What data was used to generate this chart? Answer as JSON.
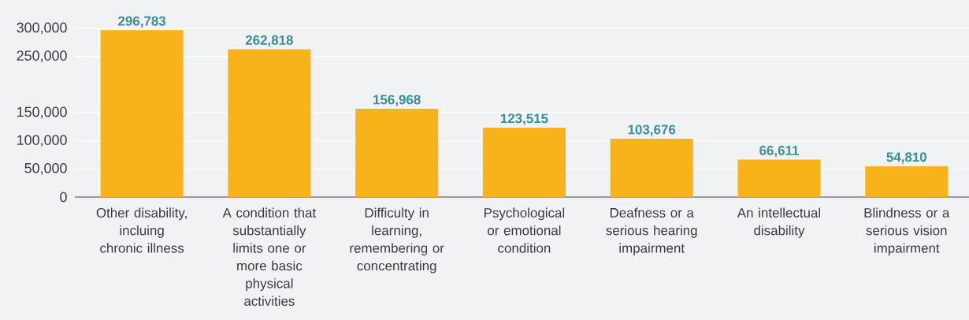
{
  "chart_data": {
    "type": "bar",
    "categories": [
      "Other disability, incluing chronic illness",
      "A condition that substantially limits one or more basic physical activities",
      "Difficulty in learning, remembering or concentrating",
      "Psychological or emotional condition",
      "Deafness or a serious hearing impairment",
      "An intellectual disability",
      "Blindness or a serious vision impairment"
    ],
    "values": [
      296783,
      262818,
      156968,
      123515,
      103676,
      66611,
      54810
    ],
    "value_labels": [
      "296,783",
      "262,818",
      "156,968",
      "123,515",
      "103,676",
      "66,611",
      "54,810"
    ],
    "color": "#f9b31a",
    "ylim": [
      0,
      300000
    ],
    "yticks": [
      {
        "value": 300000,
        "label": "300,000"
      },
      {
        "value": 250000,
        "label": "250,000"
      },
      {
        "value": 150000,
        "label": "150,000"
      },
      {
        "value": 100000,
        "label": "100,000"
      },
      {
        "value": 50000,
        "label": "50,000"
      },
      0
    ],
    "grid": "y"
  }
}
